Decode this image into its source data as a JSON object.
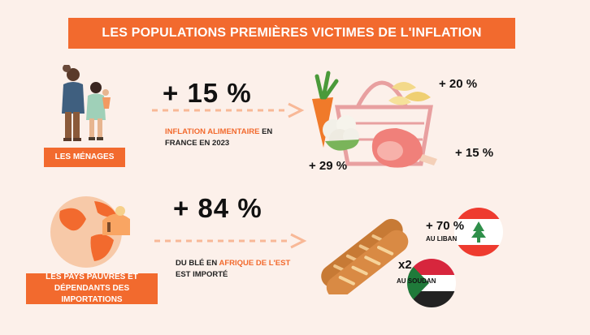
{
  "title": "LES POPULATIONS PREMIÈRES VICTIMES DE L'INFLATION",
  "households": {
    "label": "LES MÉNAGES",
    "figure": "+ 15 %",
    "note_highlight": "INFLATION ALIMENTAIRE",
    "note_rest_1": " EN",
    "note_rest_2": "FRANCE EN 2023",
    "items": {
      "pasta": "+ 20 %",
      "meat": "+ 15 %",
      "vegetables": "+ 29 %"
    }
  },
  "countries": {
    "label_line1": "LES PAYS PAUVRES ET",
    "label_line2": "DÉPENDANTS DES IMPORTATIONS",
    "figure": "+ 84 %",
    "note_part1": "DU BLÉ EN ",
    "note_highlight": "AFRIQUE DE L'EST",
    "note_line2": "EST IMPORTÉ",
    "lebanon_value": "+ 70 %",
    "lebanon_label": "AU LIBAN",
    "sudan_value": "x2",
    "sudan_label": "AU SOUDAN"
  },
  "colors": {
    "accent": "#f26a2e",
    "background": "#fcf0ea"
  }
}
